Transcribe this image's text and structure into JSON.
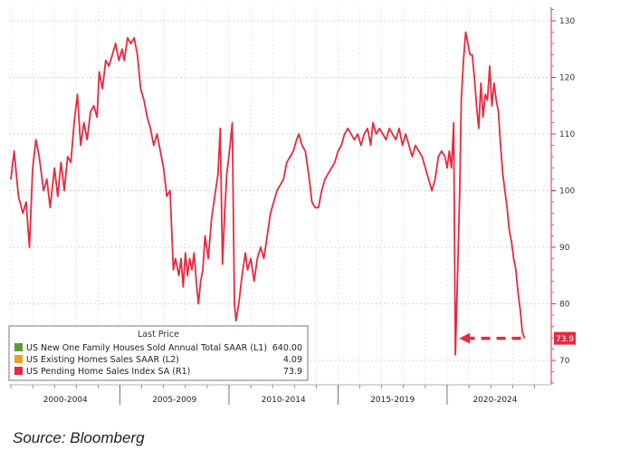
{
  "chart_data": {
    "type": "line",
    "y_axis_side": "right",
    "ylim": [
      65,
      132
    ],
    "y_ticks": [
      70,
      80,
      90,
      100,
      110,
      120,
      130
    ],
    "x_periods": [
      {
        "label": "2000-2004",
        "start": 2000.0,
        "end": 2005.0
      },
      {
        "label": "2005-2009",
        "start": 2005.0,
        "end": 2010.0
      },
      {
        "label": "2010-2014",
        "start": 2010.0,
        "end": 2015.0
      },
      {
        "label": "2015-2019",
        "start": 2015.0,
        "end": 2020.0
      },
      {
        "label": "2020-2024",
        "start": 2020.0,
        "end": 2024.4
      }
    ],
    "grid": true,
    "legend": {
      "position": "bottom-left",
      "title": "Last Price",
      "entries": [
        {
          "label": "US New One Family Houses Sold Annual Total SAAR  (L1)",
          "value": "640.00",
          "color": "#5a9e2f"
        },
        {
          "label": "US Existing Homes Sales SAAR  (L2)",
          "value": "4.09",
          "color": "#f0a020"
        },
        {
          "label": "US Pending Home Sales Index SA  (R1)",
          "value": "73.9",
          "color": "#e8293f"
        }
      ]
    },
    "last_value_label": "73.9",
    "series": [
      {
        "name": "US Pending Home Sales Index SA  (R1)",
        "color": "#e8293f",
        "points": [
          [
            2000.0,
            102
          ],
          [
            2000.15,
            107
          ],
          [
            2000.35,
            99
          ],
          [
            2000.55,
            96
          ],
          [
            2000.7,
            98
          ],
          [
            2000.85,
            90
          ],
          [
            2001.0,
            104
          ],
          [
            2001.15,
            109
          ],
          [
            2001.3,
            106
          ],
          [
            2001.5,
            100
          ],
          [
            2001.65,
            102
          ],
          [
            2001.8,
            97
          ],
          [
            2002.0,
            104
          ],
          [
            2002.15,
            99
          ],
          [
            2002.3,
            105
          ],
          [
            2002.45,
            100
          ],
          [
            2002.6,
            106
          ],
          [
            2002.75,
            105
          ],
          [
            2002.9,
            112
          ],
          [
            2003.05,
            117
          ],
          [
            2003.2,
            108
          ],
          [
            2003.35,
            112
          ],
          [
            2003.5,
            109
          ],
          [
            2003.65,
            114
          ],
          [
            2003.8,
            115
          ],
          [
            2003.95,
            113
          ],
          [
            2004.05,
            121
          ],
          [
            2004.2,
            118
          ],
          [
            2004.35,
            123
          ],
          [
            2004.5,
            122
          ],
          [
            2004.65,
            124
          ],
          [
            2004.8,
            126
          ],
          [
            2004.95,
            123
          ],
          [
            2005.1,
            125
          ],
          [
            2005.2,
            123
          ],
          [
            2005.35,
            127
          ],
          [
            2005.5,
            126
          ],
          [
            2005.65,
            127
          ],
          [
            2005.8,
            124
          ],
          [
            2005.95,
            118
          ],
          [
            2006.1,
            116
          ],
          [
            2006.25,
            113
          ],
          [
            2006.4,
            111
          ],
          [
            2006.55,
            108
          ],
          [
            2006.7,
            110
          ],
          [
            2006.85,
            107
          ],
          [
            2007.0,
            104
          ],
          [
            2007.15,
            99
          ],
          [
            2007.3,
            100
          ],
          [
            2007.45,
            86
          ],
          [
            2007.55,
            88
          ],
          [
            2007.7,
            85
          ],
          [
            2007.8,
            88
          ],
          [
            2007.9,
            83
          ],
          [
            2008.0,
            89
          ],
          [
            2008.1,
            85
          ],
          [
            2008.2,
            88
          ],
          [
            2008.3,
            86
          ],
          [
            2008.4,
            89
          ],
          [
            2008.5,
            84
          ],
          [
            2008.6,
            80
          ],
          [
            2008.7,
            84
          ],
          [
            2008.8,
            86
          ],
          [
            2008.9,
            92
          ],
          [
            2009.05,
            88
          ],
          [
            2009.2,
            95
          ],
          [
            2009.35,
            99
          ],
          [
            2009.5,
            103
          ],
          [
            2009.6,
            111
          ],
          [
            2009.7,
            87
          ],
          [
            2009.8,
            96
          ],
          [
            2009.9,
            103
          ],
          [
            2010.05,
            108
          ],
          [
            2010.15,
            112
          ],
          [
            2010.25,
            80
          ],
          [
            2010.32,
            77
          ],
          [
            2010.45,
            80
          ],
          [
            2010.6,
            85
          ],
          [
            2010.75,
            89
          ],
          [
            2010.85,
            86
          ],
          [
            2011.0,
            88
          ],
          [
            2011.15,
            84
          ],
          [
            2011.3,
            88
          ],
          [
            2011.45,
            90
          ],
          [
            2011.6,
            88
          ],
          [
            2011.75,
            92
          ],
          [
            2011.9,
            96
          ],
          [
            2012.05,
            98
          ],
          [
            2012.2,
            100
          ],
          [
            2012.35,
            101
          ],
          [
            2012.5,
            102
          ],
          [
            2012.65,
            105
          ],
          [
            2012.8,
            106
          ],
          [
            2012.95,
            107
          ],
          [
            2013.1,
            109
          ],
          [
            2013.2,
            110
          ],
          [
            2013.35,
            108
          ],
          [
            2013.5,
            107
          ],
          [
            2013.65,
            103
          ],
          [
            2013.8,
            98
          ],
          [
            2013.95,
            97
          ],
          [
            2014.1,
            97
          ],
          [
            2014.25,
            100
          ],
          [
            2014.4,
            102
          ],
          [
            2014.55,
            103
          ],
          [
            2014.7,
            104
          ],
          [
            2014.85,
            105
          ],
          [
            2015.0,
            107
          ],
          [
            2015.15,
            108
          ],
          [
            2015.3,
            110
          ],
          [
            2015.45,
            111
          ],
          [
            2015.6,
            110
          ],
          [
            2015.75,
            109
          ],
          [
            2015.9,
            110
          ],
          [
            2016.05,
            108
          ],
          [
            2016.2,
            110
          ],
          [
            2016.35,
            111
          ],
          [
            2016.5,
            108
          ],
          [
            2016.6,
            112
          ],
          [
            2016.75,
            110
          ],
          [
            2016.9,
            111
          ],
          [
            2017.05,
            110
          ],
          [
            2017.2,
            109
          ],
          [
            2017.35,
            111
          ],
          [
            2017.5,
            110
          ],
          [
            2017.65,
            109
          ],
          [
            2017.8,
            111
          ],
          [
            2017.95,
            108
          ],
          [
            2018.1,
            110
          ],
          [
            2018.25,
            108
          ],
          [
            2018.4,
            106
          ],
          [
            2018.55,
            108
          ],
          [
            2018.7,
            107
          ],
          [
            2018.85,
            106
          ],
          [
            2019.0,
            104
          ],
          [
            2019.15,
            102
          ],
          [
            2019.3,
            100
          ],
          [
            2019.45,
            102
          ],
          [
            2019.6,
            106
          ],
          [
            2019.75,
            107
          ],
          [
            2019.9,
            106
          ],
          [
            2020.0,
            104
          ],
          [
            2020.1,
            107
          ],
          [
            2020.2,
            104
          ],
          [
            2020.3,
            112
          ],
          [
            2020.38,
            71
          ],
          [
            2020.5,
            88
          ],
          [
            2020.58,
            100
          ],
          [
            2020.65,
            116
          ],
          [
            2020.75,
            123
          ],
          [
            2020.85,
            128
          ],
          [
            2020.95,
            126
          ],
          [
            2021.05,
            124
          ],
          [
            2021.15,
            124
          ],
          [
            2021.25,
            120
          ],
          [
            2021.35,
            115
          ],
          [
            2021.45,
            111
          ],
          [
            2021.55,
            119
          ],
          [
            2021.65,
            113
          ],
          [
            2021.75,
            117
          ],
          [
            2021.85,
            116
          ],
          [
            2021.95,
            122
          ],
          [
            2022.05,
            115
          ],
          [
            2022.15,
            119
          ],
          [
            2022.25,
            116
          ],
          [
            2022.35,
            114
          ],
          [
            2022.45,
            108
          ],
          [
            2022.55,
            103
          ],
          [
            2022.65,
            100
          ],
          [
            2022.75,
            97
          ],
          [
            2022.85,
            93
          ],
          [
            2022.95,
            91
          ],
          [
            2023.05,
            88
          ],
          [
            2023.15,
            86
          ],
          [
            2023.25,
            82
          ],
          [
            2023.35,
            79
          ],
          [
            2023.45,
            75
          ],
          [
            2023.55,
            73.9
          ]
        ]
      }
    ]
  },
  "source": "Source: Bloomberg"
}
